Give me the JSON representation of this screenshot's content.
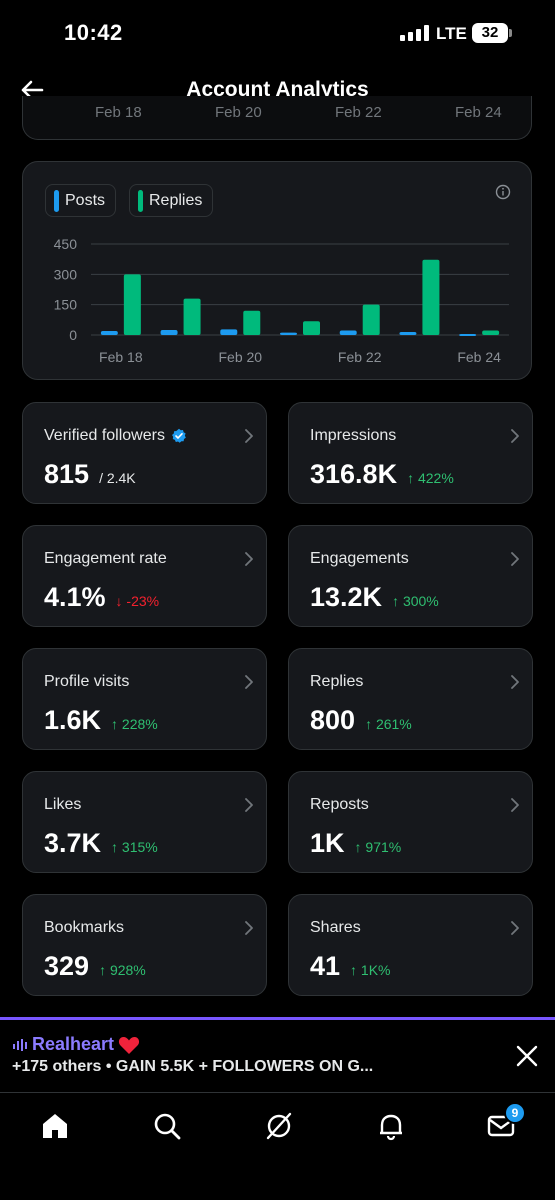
{
  "status_bar": {
    "time": "10:42",
    "network": "LTE",
    "battery": "32"
  },
  "header": {
    "title": "Account Analytics"
  },
  "prev_chart_axis": [
    "Feb 18",
    "Feb 20",
    "Feb 22",
    "Feb 24"
  ],
  "chart_data": {
    "type": "bar",
    "categories": [
      "Feb 18",
      "Feb 19",
      "Feb 20",
      "Feb 21",
      "Feb 22",
      "Feb 23",
      "Feb 24"
    ],
    "x_tick_labels": [
      "Feb 18",
      "Feb 20",
      "Feb 22",
      "Feb 24"
    ],
    "series": [
      {
        "name": "Posts",
        "color": "#1d9bf0",
        "values": [
          20,
          25,
          28,
          12,
          22,
          15,
          5
        ]
      },
      {
        "name": "Replies",
        "color": "#00ba7c",
        "values": [
          300,
          180,
          120,
          68,
          150,
          372,
          22
        ]
      }
    ],
    "y_ticks": [
      0,
      150,
      300,
      450
    ],
    "ylim": [
      0,
      450
    ],
    "grid": true,
    "legend_placement": "top-left"
  },
  "info_icon": "info-icon",
  "stats": [
    {
      "label": "Verified followers",
      "value": "815",
      "sub": "/ 2.4K",
      "delta": "",
      "direction": "none",
      "verified": true
    },
    {
      "label": "Impressions",
      "value": "316.8K",
      "delta": "↑ 422%",
      "direction": "up"
    },
    {
      "label": "Engagement rate",
      "value": "4.1%",
      "delta": "↓ -23%",
      "direction": "down"
    },
    {
      "label": "Engagements",
      "value": "13.2K",
      "delta": "↑ 300%",
      "direction": "up"
    },
    {
      "label": "Profile visits",
      "value": "1.6K",
      "delta": "↑ 228%",
      "direction": "up"
    },
    {
      "label": "Replies",
      "value": "800",
      "delta": "↑ 261%",
      "direction": "up"
    },
    {
      "label": "Likes",
      "value": "3.7K",
      "delta": "↑ 315%",
      "direction": "up"
    },
    {
      "label": "Reposts",
      "value": "1K",
      "delta": "↑ 971%",
      "direction": "up"
    },
    {
      "label": "Bookmarks",
      "value": "329",
      "delta": "↑ 928%",
      "direction": "up"
    },
    {
      "label": "Shares",
      "value": "41",
      "delta": "↑ 1K%",
      "direction": "up"
    }
  ],
  "banner": {
    "title": "Realheart",
    "body": "+175 others • GAIN 5.5K + FOLLOWERS ON G...",
    "accent": "#7856ff"
  },
  "nav": {
    "items": [
      "home-icon",
      "search-icon",
      "grok-icon",
      "notifications-icon",
      "messages-icon"
    ],
    "messages_badge": "9"
  },
  "colors": {
    "background": "#000000",
    "card": "#16181c",
    "border": "#2f3336",
    "up": "#2fbf71",
    "down": "#f4212e",
    "accent": "#1d9bf0"
  }
}
